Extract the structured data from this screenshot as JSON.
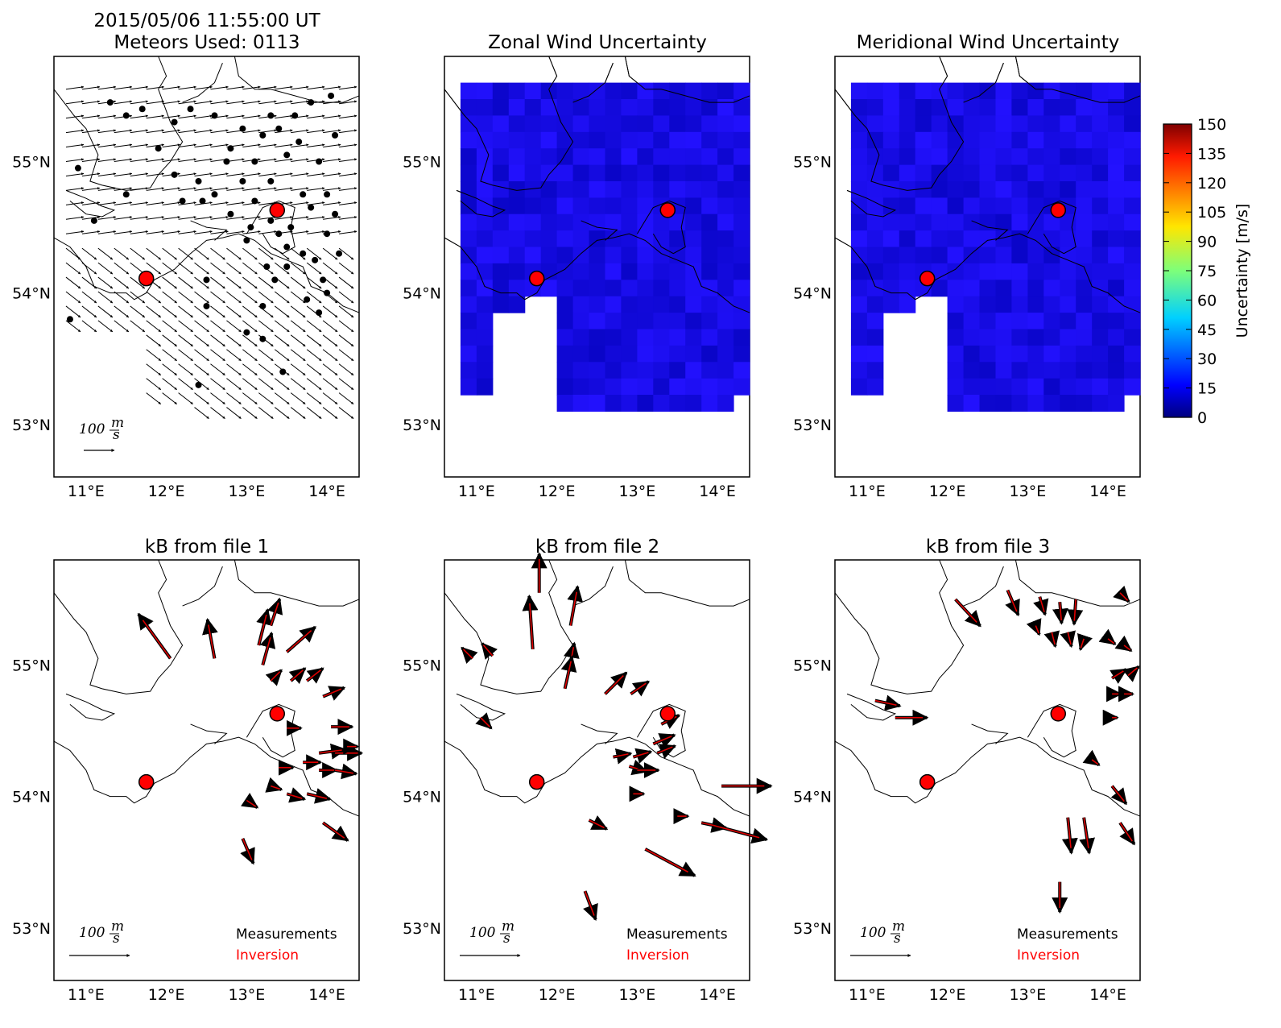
{
  "figure": {
    "main_title_line1": "2015/05/06 11:55:00 UT",
    "main_title_line2": "Meteors Used: 0113",
    "panel_titles": [
      "Zonal Wind Uncertainty",
      "Meridional Wind Uncertainty",
      "kB from file 1",
      "kB from file 2",
      "kB from file 3"
    ],
    "lon_ticks": [
      "11°E",
      "12°E",
      "13°E",
      "14°E"
    ],
    "lat_ticks": [
      "55°N",
      "54°N",
      "53°N"
    ],
    "scale_label": "100",
    "scale_unit_top": "m",
    "scale_unit_bottom": "s",
    "legend_measurements": "Measurements",
    "legend_inversion": "Inversion",
    "colorbar_label": "Uncertainty [m/s]",
    "colorbar_ticks": [
      "150",
      "135",
      "120",
      "105",
      "90",
      "75",
      "60",
      "45",
      "30",
      "15",
      "0"
    ]
  },
  "colors": {
    "station": "#ff0000",
    "measurement_arrow": "#000000",
    "inversion_arrow": "#ff0000",
    "uncertainty_low": "#1a10f0",
    "uncertainty_high": "#800000"
  },
  "chart_data": [
    {
      "type": "quiver",
      "title": "2015/05/06 11:55:00 UT / Meteors Used: 0113",
      "xlim": [
        10.6,
        14.4
      ],
      "ylim": [
        52.6,
        55.8
      ],
      "stations": [
        {
          "lon": 11.75,
          "lat": 54.11
        },
        {
          "lon": 13.38,
          "lat": 54.63
        }
      ],
      "wind_field_direction": "eastward north of 54.4°N, south-eastward (toward SE) south of 54.4°N",
      "meteors_used": 113
    },
    {
      "type": "heatmap",
      "title": "Zonal Wind Uncertainty",
      "xlim": [
        10.6,
        14.4
      ],
      "ylim": [
        52.6,
        55.8
      ],
      "value_range_m_s": [
        5,
        15
      ],
      "colorbar_range": [
        0,
        150
      ],
      "stations": [
        {
          "lon": 11.75,
          "lat": 54.11
        },
        {
          "lon": 13.38,
          "lat": 54.63
        }
      ]
    },
    {
      "type": "heatmap",
      "title": "Meridional Wind Uncertainty",
      "xlim": [
        10.6,
        14.4
      ],
      "ylim": [
        52.6,
        55.8
      ],
      "value_range_m_s": [
        5,
        15
      ],
      "colorbar_range": [
        0,
        150
      ],
      "stations": [
        {
          "lon": 11.75,
          "lat": 54.11
        },
        {
          "lon": 13.38,
          "lat": 54.63
        }
      ]
    },
    {
      "type": "quiver",
      "title": "kB from file 1",
      "series": [
        {
          "name": "Measurements"
        },
        {
          "name": "Inversion"
        }
      ],
      "arrows": [
        {
          "lon": 12.05,
          "lat": 55.05,
          "u": -18,
          "v": 25
        },
        {
          "lon": 12.6,
          "lat": 55.05,
          "u": -4,
          "v": 22
        },
        {
          "lon": 13.15,
          "lat": 55.15,
          "u": 5,
          "v": 20
        },
        {
          "lon": 13.3,
          "lat": 55.3,
          "u": 5,
          "v": 15
        },
        {
          "lon": 13.5,
          "lat": 55.1,
          "u": 16,
          "v": 14
        },
        {
          "lon": 13.2,
          "lat": 55.0,
          "u": 5,
          "v": 18
        },
        {
          "lon": 13.3,
          "lat": 54.88,
          "u": 6,
          "v": 6
        },
        {
          "lon": 13.55,
          "lat": 54.88,
          "u": 8,
          "v": 7
        },
        {
          "lon": 13.75,
          "lat": 54.88,
          "u": 9,
          "v": 7
        },
        {
          "lon": 13.95,
          "lat": 54.76,
          "u": 12,
          "v": 5
        },
        {
          "lon": 14.05,
          "lat": 54.53,
          "u": 12,
          "v": 0
        },
        {
          "lon": 13.5,
          "lat": 54.52,
          "u": 8,
          "v": 0
        },
        {
          "lon": 13.9,
          "lat": 54.33,
          "u": 15,
          "v": 2
        },
        {
          "lon": 14.1,
          "lat": 54.33,
          "u": 15,
          "v": 0
        },
        {
          "lon": 14.25,
          "lat": 54.38,
          "u": 6,
          "v": 0
        },
        {
          "lon": 13.7,
          "lat": 54.26,
          "u": 10,
          "v": 0
        },
        {
          "lon": 13.9,
          "lat": 54.2,
          "u": 10,
          "v": 0
        },
        {
          "lon": 14.1,
          "lat": 54.2,
          "u": 12,
          "v": -2
        },
        {
          "lon": 13.4,
          "lat": 54.22,
          "u": 8,
          "v": 0
        },
        {
          "lon": 13.3,
          "lat": 54.08,
          "u": 6,
          "v": -2
        },
        {
          "lon": 13.5,
          "lat": 54.02,
          "u": 10,
          "v": -3
        },
        {
          "lon": 13.75,
          "lat": 54.02,
          "u": 13,
          "v": -3
        },
        {
          "lon": 13.0,
          "lat": 53.97,
          "u": 6,
          "v": -4
        },
        {
          "lon": 13.95,
          "lat": 53.8,
          "u": 14,
          "v": -10
        },
        {
          "lon": 12.95,
          "lat": 53.68,
          "u": 6,
          "v": -14
        }
      ],
      "stations": [
        {
          "lon": 11.75,
          "lat": 54.11
        },
        {
          "lon": 13.38,
          "lat": 54.63
        }
      ]
    },
    {
      "type": "quiver",
      "title": "kB from file 2",
      "series": [
        {
          "name": "Measurements"
        },
        {
          "name": "Inversion"
        }
      ],
      "arrows": [
        {
          "lon": 11.78,
          "lat": 55.55,
          "u": 0,
          "v": 22
        },
        {
          "lon": 11.7,
          "lat": 55.12,
          "u": -2,
          "v": 30
        },
        {
          "lon": 12.17,
          "lat": 55.3,
          "u": 4,
          "v": 22
        },
        {
          "lon": 10.95,
          "lat": 55.05,
          "u": -6,
          "v": 6
        },
        {
          "lon": 11.2,
          "lat": 55.07,
          "u": -6,
          "v": 7
        },
        {
          "lon": 12.15,
          "lat": 54.95,
          "u": 3,
          "v": 16
        },
        {
          "lon": 12.1,
          "lat": 54.82,
          "u": 4,
          "v": 18
        },
        {
          "lon": 12.6,
          "lat": 54.78,
          "u": 12,
          "v": 12
        },
        {
          "lon": 12.92,
          "lat": 54.78,
          "u": 10,
          "v": 7
        },
        {
          "lon": 11.05,
          "lat": 54.6,
          "u": 6,
          "v": -6
        },
        {
          "lon": 13.3,
          "lat": 54.55,
          "u": 10,
          "v": 5
        },
        {
          "lon": 13.2,
          "lat": 54.4,
          "u": 12,
          "v": 5
        },
        {
          "lon": 13.25,
          "lat": 54.33,
          "u": 10,
          "v": 4
        },
        {
          "lon": 12.95,
          "lat": 54.3,
          "u": 10,
          "v": 3
        },
        {
          "lon": 12.7,
          "lat": 54.3,
          "u": 10,
          "v": 2
        },
        {
          "lon": 12.9,
          "lat": 54.23,
          "u": 10,
          "v": -3
        },
        {
          "lon": 13.0,
          "lat": 54.2,
          "u": 12,
          "v": 0
        },
        {
          "lon": 14.05,
          "lat": 54.08,
          "u": 28,
          "v": 0
        },
        {
          "lon": 12.95,
          "lat": 54.02,
          "u": 6,
          "v": 0
        },
        {
          "lon": 13.5,
          "lat": 53.85,
          "u": 6,
          "v": 0
        },
        {
          "lon": 13.8,
          "lat": 53.8,
          "u": 14,
          "v": -3
        },
        {
          "lon": 13.95,
          "lat": 53.78,
          "u": 30,
          "v": -8
        },
        {
          "lon": 12.4,
          "lat": 53.82,
          "u": 10,
          "v": -5
        },
        {
          "lon": 13.1,
          "lat": 53.6,
          "u": 28,
          "v": -15
        },
        {
          "lon": 12.35,
          "lat": 53.28,
          "u": 6,
          "v": -16
        }
      ],
      "stations": [
        {
          "lon": 11.75,
          "lat": 54.11
        },
        {
          "lon": 13.38,
          "lat": 54.63
        }
      ]
    },
    {
      "type": "quiver",
      "title": "kB from file 3",
      "series": [
        {
          "name": "Measurements"
        },
        {
          "name": "Inversion"
        }
      ],
      "arrows": [
        {
          "lon": 12.1,
          "lat": 55.5,
          "u": 14,
          "v": -15
        },
        {
          "lon": 12.75,
          "lat": 55.57,
          "u": 6,
          "v": -14
        },
        {
          "lon": 13.15,
          "lat": 55.52,
          "u": 3,
          "v": -10
        },
        {
          "lon": 13.4,
          "lat": 55.48,
          "u": 1,
          "v": -12
        },
        {
          "lon": 13.6,
          "lat": 55.5,
          "u": -1,
          "v": -14
        },
        {
          "lon": 14.15,
          "lat": 55.55,
          "u": 5,
          "v": -5
        },
        {
          "lon": 13.1,
          "lat": 55.3,
          "u": 2,
          "v": -5
        },
        {
          "lon": 13.3,
          "lat": 55.25,
          "u": 2,
          "v": -8
        },
        {
          "lon": 13.5,
          "lat": 55.25,
          "u": 2,
          "v": -8
        },
        {
          "lon": 13.7,
          "lat": 55.2,
          "u": -2,
          "v": -6
        },
        {
          "lon": 14.0,
          "lat": 55.2,
          "u": 4,
          "v": -3
        },
        {
          "lon": 14.2,
          "lat": 55.15,
          "u": 4,
          "v": -3
        },
        {
          "lon": 14.05,
          "lat": 54.9,
          "u": 8,
          "v": 5
        },
        {
          "lon": 14.25,
          "lat": 54.92,
          "u": 6,
          "v": 5
        },
        {
          "lon": 14.05,
          "lat": 54.78,
          "u": 5,
          "v": 0
        },
        {
          "lon": 14.2,
          "lat": 54.78,
          "u": 5,
          "v": 0
        },
        {
          "lon": 11.1,
          "lat": 54.73,
          "u": 14,
          "v": -3
        },
        {
          "lon": 11.35,
          "lat": 54.6,
          "u": 18,
          "v": 0
        },
        {
          "lon": 14.05,
          "lat": 54.6,
          "u": 3,
          "v": 0
        },
        {
          "lon": 13.8,
          "lat": 54.28,
          "u": 4,
          "v": -3
        },
        {
          "lon": 14.05,
          "lat": 54.08,
          "u": 8,
          "v": -10
        },
        {
          "lon": 13.5,
          "lat": 53.84,
          "u": 2,
          "v": -20
        },
        {
          "lon": 13.7,
          "lat": 53.84,
          "u": 3,
          "v": -20
        },
        {
          "lon": 14.15,
          "lat": 53.8,
          "u": 8,
          "v": -12
        },
        {
          "lon": 13.4,
          "lat": 53.35,
          "u": 0,
          "v": -17
        }
      ],
      "stations": [
        {
          "lon": 11.75,
          "lat": 54.11
        },
        {
          "lon": 13.38,
          "lat": 54.63
        }
      ]
    }
  ]
}
